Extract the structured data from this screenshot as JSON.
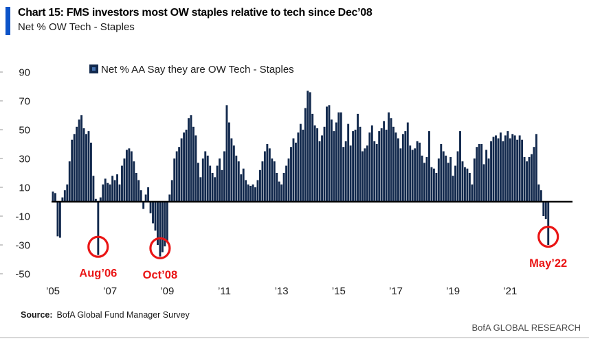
{
  "header": {
    "title": "Chart 15: FMS investors most OW staples relative to tech since Dec’08",
    "subtitle": "Net % OW Tech - Staples"
  },
  "footer": {
    "source_label": "Source:",
    "source_text": "BofA Global Fund Manager Survey",
    "branding": "BofA GLOBAL RESEARCH"
  },
  "colors": {
    "accent_blue": "#0c53c8",
    "bar_navy": "#12294d",
    "legend_inner_blue": "#4472b0",
    "annotation_red": "#ea1515",
    "axis_black": "#000000",
    "branding_gray": "#4d4d4d"
  },
  "chart_data": {
    "type": "bar",
    "title": "Net % OW Tech - Staples",
    "legend": "Net % AA Say they are OW Tech - Staples",
    "legend_position": "top-left-inside",
    "grid": false,
    "frequency": "monthly",
    "x_start": "2005-01",
    "x_end": "2022-05",
    "ylim": [
      -50,
      90
    ],
    "y_ticks": [
      90,
      70,
      50,
      30,
      10,
      -10,
      -30,
      -50
    ],
    "x_tick_labels": [
      "’05",
      "’07",
      "’09",
      "’11",
      "’13",
      "’15",
      "’17",
      "’19",
      "’21"
    ],
    "x_tick_interval_months": 24,
    "annotations": [
      {
        "label": "Aug’06",
        "month": "2006-08",
        "value": -37
      },
      {
        "label": "Oct’08",
        "month": "2008-10",
        "value": -38
      },
      {
        "label": "May’22",
        "month": "2022-05",
        "value": -30
      }
    ],
    "series": [
      {
        "name": "Net % AA Say they are OW Tech - Staples",
        "monthly_values_from_2005_01": [
          7,
          6,
          -24,
          -25,
          3,
          8,
          12,
          28,
          43,
          47,
          52,
          57,
          60,
          51,
          47,
          49,
          41,
          18,
          2,
          -37,
          3,
          12,
          16,
          13,
          12,
          18,
          15,
          19,
          12,
          25,
          30,
          36,
          37,
          35,
          28,
          20,
          15,
          8,
          -5,
          5,
          10,
          -8,
          -15,
          -20,
          -30,
          -38,
          -35,
          -31,
          -28,
          5,
          15,
          30,
          35,
          38,
          44,
          48,
          50,
          58,
          60,
          52,
          46,
          27,
          17,
          30,
          35,
          32,
          25,
          20,
          17,
          25,
          30,
          22,
          35,
          67,
          55,
          44,
          39,
          32,
          28,
          19,
          23,
          15,
          12,
          11,
          12,
          10,
          15,
          22,
          28,
          35,
          40,
          37,
          30,
          28,
          20,
          14,
          12,
          20,
          25,
          30,
          38,
          44,
          41,
          48,
          54,
          50,
          65,
          77,
          76,
          61,
          53,
          51,
          42,
          46,
          52,
          66,
          67,
          57,
          49,
          55,
          62,
          62,
          38,
          42,
          54,
          39,
          49,
          50,
          61,
          52,
          35,
          37,
          39,
          48,
          53,
          42,
          40,
          49,
          51,
          56,
          50,
          62,
          58,
          52,
          48,
          44,
          37,
          47,
          49,
          55,
          39,
          36,
          37,
          42,
          41,
          32,
          27,
          31,
          49,
          24,
          23,
          20,
          30,
          40,
          35,
          32,
          27,
          31,
          18,
          25,
          35,
          49,
          28,
          24,
          23,
          20,
          12,
          30,
          38,
          40,
          40,
          26,
          36,
          30,
          42,
          45,
          46,
          44,
          48,
          42,
          46,
          49,
          44,
          47,
          46,
          43,
          46,
          43,
          31,
          28,
          31,
          33,
          38,
          47,
          12,
          8,
          -10,
          -12,
          -30
        ]
      }
    ]
  }
}
